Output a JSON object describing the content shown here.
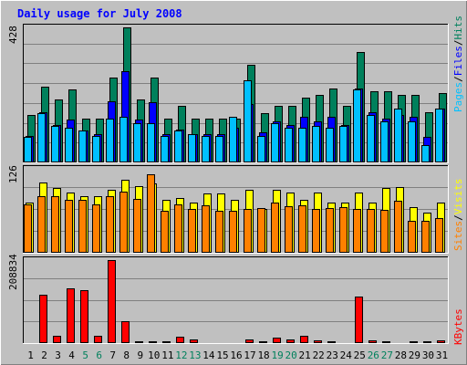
{
  "chart_data": [
    {
      "type": "bar",
      "panel": "hits_files_pages",
      "title": "Daily usage for July 2008",
      "y_max_label": "428",
      "ylim": [
        0,
        428
      ],
      "grid": true,
      "legend_labels": [
        "Pages",
        "Files",
        "Hits"
      ],
      "legend_placement": "right",
      "categories": [
        "1",
        "2",
        "3",
        "4",
        "5",
        "6",
        "7",
        "8",
        "9",
        "10",
        "11",
        "12",
        "13",
        "14",
        "15",
        "16",
        "17",
        "18",
        "19",
        "20",
        "21",
        "22",
        "23",
        "24",
        "25",
        "26",
        "27",
        "28",
        "29",
        "30",
        "31"
      ],
      "series": [
        {
          "name": "Hits",
          "color": "#00805c",
          "values": [
            150,
            240,
            200,
            230,
            140,
            140,
            270,
            428,
            200,
            270,
            140,
            180,
            140,
            140,
            140,
            140,
            310,
            155,
            180,
            180,
            205,
            215,
            235,
            180,
            350,
            225,
            225,
            215,
            215,
            160,
            220
          ]
        },
        {
          "name": "Files",
          "color": "#0000ff",
          "values": [
            85,
            160,
            120,
            135,
            100,
            90,
            195,
            290,
            135,
            190,
            90,
            105,
            90,
            90,
            90,
            110,
            185,
            95,
            130,
            120,
            145,
            130,
            145,
            120,
            235,
            160,
            140,
            150,
            145,
            80,
            170
          ]
        },
        {
          "name": "Pages",
          "color": "#00c0ff",
          "values": [
            80,
            155,
            115,
            110,
            100,
            85,
            140,
            145,
            125,
            125,
            85,
            100,
            90,
            85,
            85,
            145,
            260,
            85,
            125,
            110,
            110,
            115,
            110,
            115,
            230,
            150,
            130,
            170,
            130,
            55,
            170
          ]
        }
      ]
    },
    {
      "type": "bar",
      "panel": "visits_sites",
      "y_max_label": "126",
      "ylim": [
        0,
        126
      ],
      "grid": true,
      "legend_labels": [
        "Sites",
        "Visits"
      ],
      "legend_placement": "right",
      "categories": [
        "1",
        "2",
        "3",
        "4",
        "5",
        "6",
        "7",
        "8",
        "9",
        "10",
        "11",
        "12",
        "13",
        "14",
        "15",
        "16",
        "17",
        "18",
        "19",
        "20",
        "21",
        "22",
        "23",
        "24",
        "25",
        "26",
        "27",
        "28",
        "29",
        "30",
        "31"
      ],
      "series": [
        {
          "name": "Visits",
          "color": "#ffff00",
          "values": [
            75,
            105,
            97,
            91,
            85,
            85,
            95,
            110,
            100,
            104,
            80,
            82,
            75,
            89,
            89,
            80,
            95,
            66,
            94,
            91,
            80,
            91,
            76,
            75,
            91,
            76,
            97,
            99,
            68,
            60,
            75
          ]
        },
        {
          "name": "Sites",
          "color": "#ff8000",
          "values": [
            73,
            85,
            85,
            80,
            80,
            73,
            85,
            92,
            81,
            118,
            63,
            72,
            66,
            71,
            63,
            63,
            66,
            67,
            76,
            70,
            71,
            66,
            67,
            68,
            66,
            66,
            65,
            78,
            48,
            48,
            52
          ]
        }
      ]
    },
    {
      "type": "bar",
      "panel": "kbytes",
      "y_max_label": "208834",
      "ylim": [
        0,
        208834
      ],
      "grid": true,
      "legend_labels": [
        "KBytes"
      ],
      "legend_placement": "right",
      "categories": [
        "1",
        "2",
        "3",
        "4",
        "5",
        "6",
        "7",
        "8",
        "9",
        "10",
        "11",
        "12",
        "13",
        "14",
        "15",
        "16",
        "17",
        "18",
        "19",
        "20",
        "21",
        "22",
        "23",
        "24",
        "25",
        "26",
        "27",
        "28",
        "29",
        "30",
        "31"
      ],
      "weekend_days": [
        "5",
        "6",
        "12",
        "13",
        "19",
        "20",
        "26",
        "27"
      ],
      "series": [
        {
          "name": "KBytes",
          "color": "#ff0000",
          "values": [
            2000,
            122000,
            18000,
            137000,
            133000,
            18000,
            208834,
            54000,
            5000,
            5000,
            5000,
            15000,
            10000,
            3000,
            3000,
            3000,
            9000,
            4000,
            13000,
            10000,
            18000,
            8000,
            5000,
            3000,
            118000,
            7000,
            4000,
            3000,
            5000,
            5000,
            6000
          ]
        }
      ]
    }
  ]
}
